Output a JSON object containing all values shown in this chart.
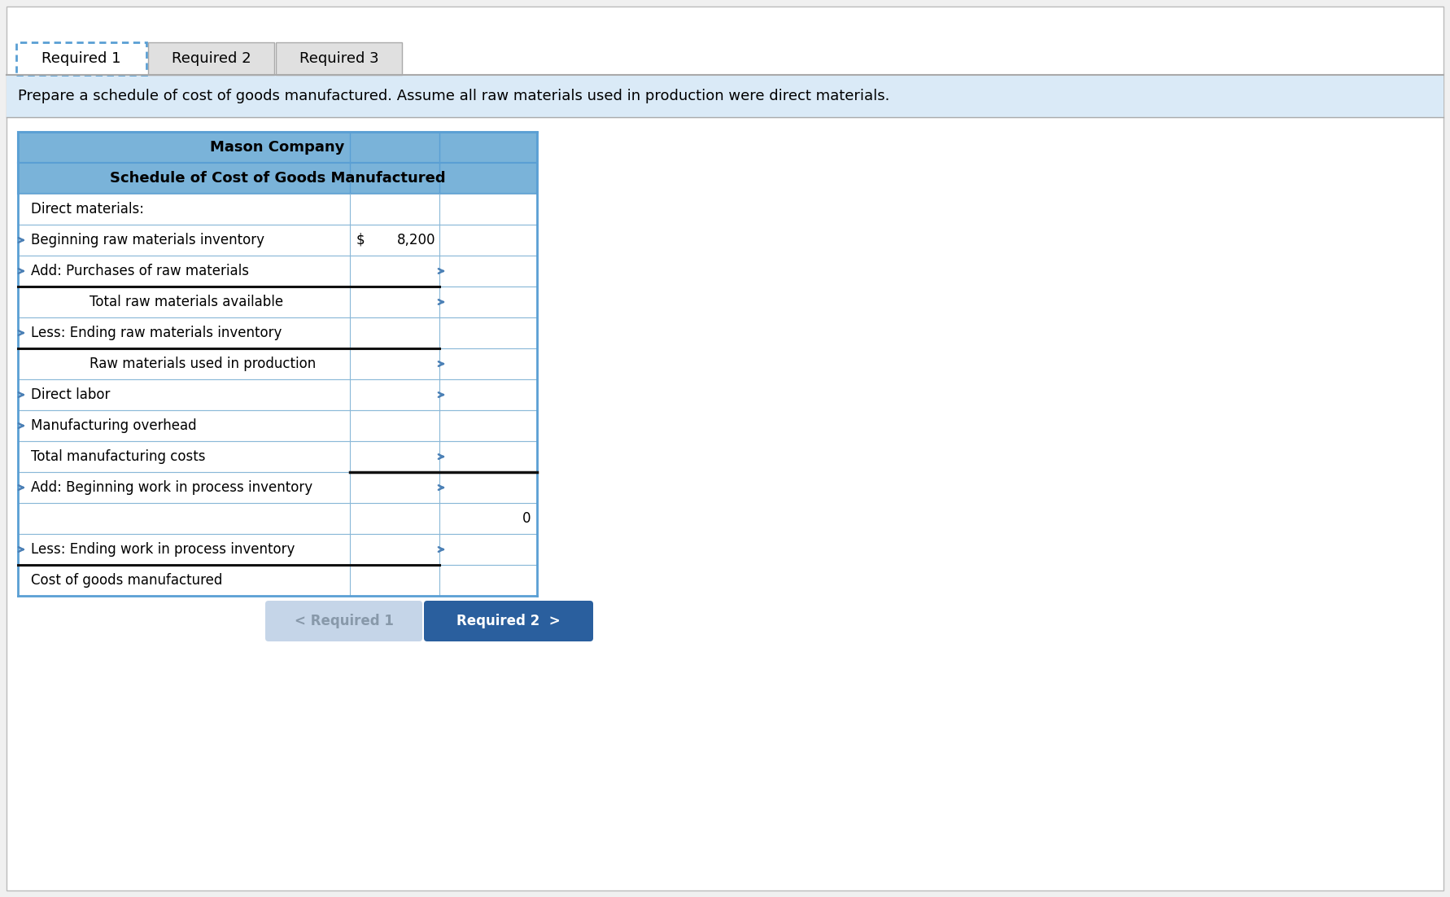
{
  "title_company": "Mason Company",
  "title_schedule": "Schedule of Cost of Goods Manufactured",
  "instruction_text": "Prepare a schedule of cost of goods manufactured. Assume all raw materials used in production were direct materials.",
  "tabs": [
    "Required 1",
    "Required 2",
    "Required 3"
  ],
  "active_tab": 0,
  "rows": [
    {
      "label": "Direct materials:",
      "indent": 0,
      "col1": "",
      "col2": "",
      "left_arrow": false,
      "right_arrow": false,
      "bold_bottom": false
    },
    {
      "label": "Beginning raw materials inventory",
      "indent": 1,
      "col1_dollar": "$",
      "col1_val": "8,200",
      "col2": "",
      "left_arrow": true,
      "right_arrow": false,
      "bold_bottom": false
    },
    {
      "label": "Add: Purchases of raw materials",
      "indent": 1,
      "col1": "",
      "col2": "",
      "left_arrow": true,
      "right_arrow": true,
      "bold_bottom": true
    },
    {
      "label": "Total raw materials available",
      "indent": 2,
      "col1": "",
      "col2": "",
      "left_arrow": false,
      "right_arrow": true,
      "bold_bottom": false
    },
    {
      "label": "Less: Ending raw materials inventory",
      "indent": 1,
      "col1": "",
      "col2": "",
      "left_arrow": true,
      "right_arrow": false,
      "bold_bottom": true
    },
    {
      "label": "Raw materials used in production",
      "indent": 2,
      "col1": "",
      "col2": "",
      "left_arrow": false,
      "right_arrow": true,
      "bold_bottom": false
    },
    {
      "label": "Direct labor",
      "indent": 0,
      "col1": "",
      "col2": "",
      "left_arrow": true,
      "right_arrow": true,
      "bold_bottom": false
    },
    {
      "label": "Manufacturing overhead",
      "indent": 0,
      "col1": "",
      "col2": "",
      "left_arrow": true,
      "right_arrow": false,
      "bold_bottom": false
    },
    {
      "label": "Total manufacturing costs",
      "indent": 0,
      "col1": "",
      "col2": "",
      "left_arrow": false,
      "right_arrow": true,
      "bold_bottom": false
    },
    {
      "label": "Add: Beginning work in process inventory",
      "indent": 0,
      "col1": "",
      "col2": "",
      "left_arrow": true,
      "right_arrow": true,
      "bold_bottom": false
    },
    {
      "label": "",
      "indent": 0,
      "col1": "",
      "col2": "0",
      "left_arrow": false,
      "right_arrow": false,
      "bold_bottom": false
    },
    {
      "label": "Less: Ending work in process inventory",
      "indent": 0,
      "col1": "",
      "col2": "",
      "left_arrow": true,
      "right_arrow": true,
      "bold_bottom": true
    },
    {
      "label": "Cost of goods manufactured",
      "indent": 0,
      "col1": "",
      "col2": "",
      "left_arrow": false,
      "right_arrow": false,
      "bold_bottom": false
    }
  ],
  "header_bg": "#7ab3d9",
  "tab_active_bg": "#ffffff",
  "tab_inactive_bg": "#e0e0e0",
  "tab_dashed_color": "#5a9fd4",
  "instruction_bg": "#daeaf7",
  "table_border": "#5a9fd4",
  "row_border": "#8ab8d8",
  "arrow_color": "#4a7fb5",
  "bold_line_color": "#1a1a2e",
  "btn_req1_bg": "#c5d5e8",
  "btn_req1_text_color": "#8899aa",
  "btn_req2_bg": "#2a5f9e",
  "fig_bg": "#f0f0f0",
  "page_bg": "#ffffff",
  "tab_font_size": 13,
  "instr_font_size": 13,
  "header_font_size": 13,
  "row_font_size": 12
}
